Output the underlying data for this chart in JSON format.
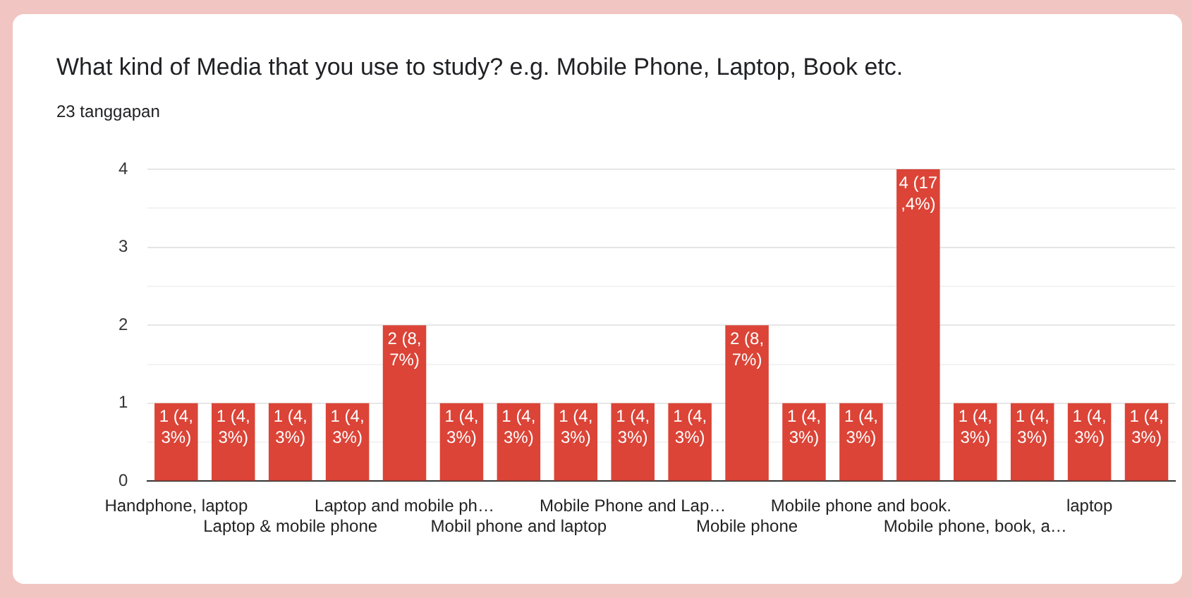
{
  "chart_data": {
    "type": "bar",
    "title": "What kind of Media that you use to study? e.g. Mobile Phone, Laptop, Book etc.",
    "subtitle": "23 tanggapan",
    "categories": [
      "Handphone, laptop",
      null,
      "Laptop & mobile phone",
      null,
      "Laptop and mobile ph…",
      null,
      "Mobil phone and laptop",
      null,
      "Mobile Phone and Lap…",
      null,
      "Mobile phone",
      null,
      "Mobile phone and book.",
      null,
      "Mobile phone, book, a…",
      null,
      "laptop",
      null
    ],
    "values": [
      1,
      1,
      1,
      1,
      2,
      1,
      1,
      1,
      1,
      1,
      2,
      1,
      1,
      4,
      1,
      1,
      1,
      1
    ],
    "value_labels": [
      "1 (4,3%)",
      "1 (4,3%)",
      "1 (4,3%)",
      "1 (4,3%)",
      "2 (8,7%)",
      "1 (4,3%)",
      "1 (4,3%)",
      "1 (4,3%)",
      "1 (4,3%)",
      "1 (4,3%)",
      "2 (8,7%)",
      "1 (4,3%)",
      "1 (4,3%)",
      "4 (17,4%)",
      "1 (4,3%)",
      "1 (4,3%)",
      "1 (4,3%)",
      "1 (4,3%)"
    ],
    "color": "#db4437",
    "ylim": [
      0,
      4
    ],
    "yticks": [
      0,
      {
        "value": 0.5,
        "label": null
      },
      1,
      {
        "value": 1.5,
        "label": null
      },
      2,
      {
        "value": 2.5,
        "label": null
      },
      3,
      {
        "value": 3.5,
        "label": null
      },
      4
    ],
    "grid": "y",
    "legend": false
  }
}
